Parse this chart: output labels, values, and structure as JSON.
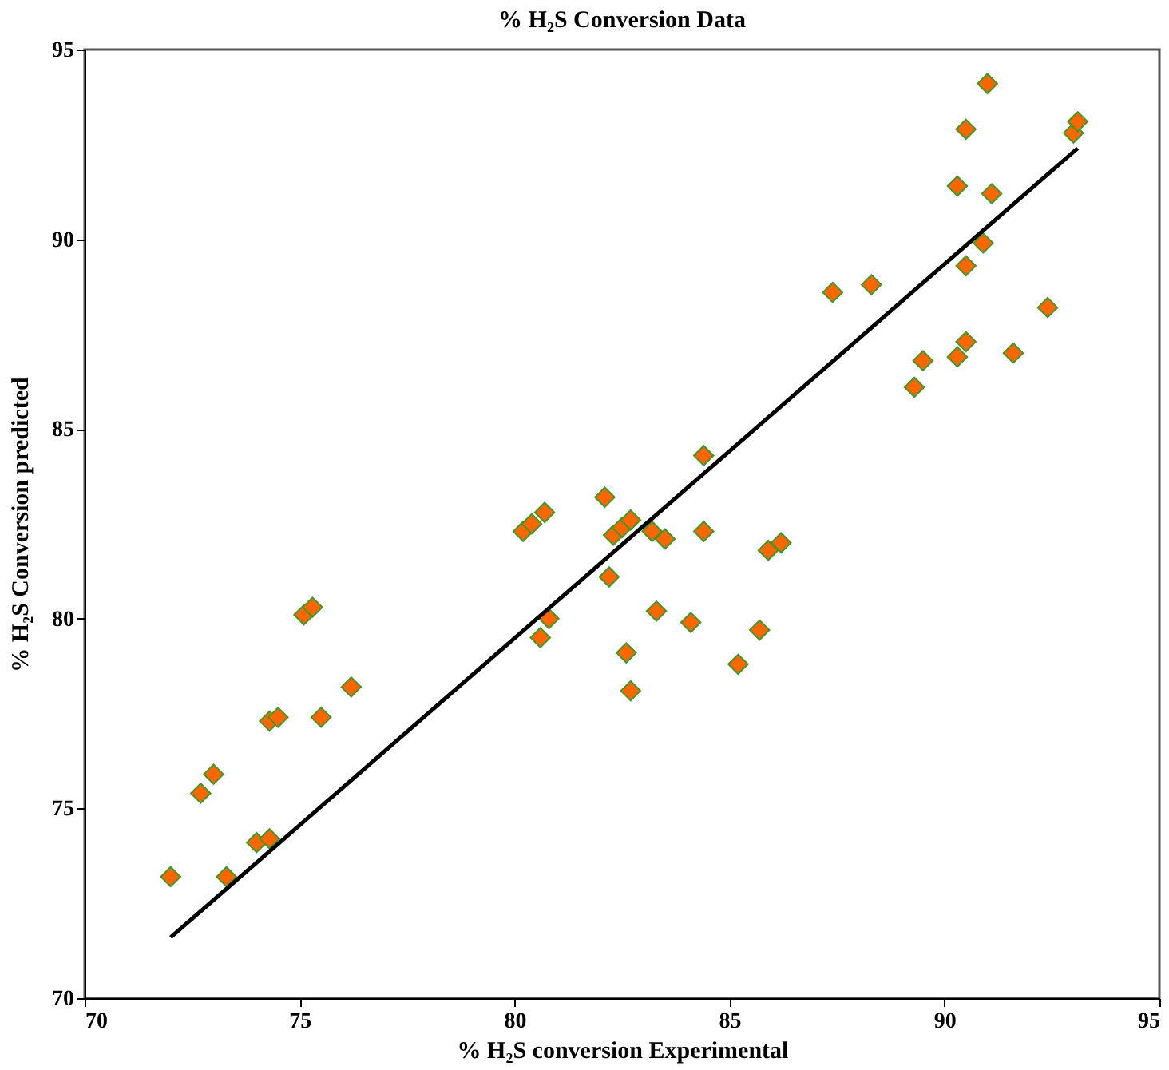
{
  "chart_data": {
    "type": "scatter",
    "title": "% H₂S Conversion Data",
    "xlabel": "% H₂S conversion Experimental",
    "ylabel": "% H₂S Conversion predicted",
    "xlim": [
      70,
      95
    ],
    "xticks": [
      70,
      75,
      80,
      85,
      90,
      95
    ],
    "ylim": [
      70,
      95
    ],
    "yticks": [
      70,
      75,
      80,
      85,
      90,
      95
    ],
    "grid": false,
    "marker": "diamond",
    "series": [
      {
        "color": "#ff6600",
        "x": [
          72.0,
          73.3,
          74.0,
          74.3,
          72.7,
          73.0,
          74.3,
          74.5,
          75.5,
          76.2,
          75.1,
          75.3,
          80.2,
          80.4,
          80.7,
          80.6,
          80.8,
          82.1,
          84.4,
          82.2,
          82.3,
          82.5,
          82.7,
          83.2,
          83.5,
          84.4,
          83.3,
          84.1,
          82.6,
          82.7,
          85.2,
          85.7,
          85.9,
          86.2,
          89.3,
          89.5,
          90.3,
          90.5,
          91.6,
          92.4,
          90.5,
          90.9,
          90.3,
          91.1,
          90.5,
          91.0,
          93.0,
          93.1,
          88.3,
          87.4
        ],
        "values": [
          73.2,
          73.2,
          74.1,
          74.2,
          75.4,
          75.9,
          77.3,
          77.4,
          77.4,
          78.2,
          80.1,
          80.3,
          82.3,
          82.5,
          82.8,
          79.5,
          80.0,
          83.2,
          84.3,
          81.1,
          82.2,
          82.4,
          82.6,
          82.3,
          82.1,
          82.3,
          80.2,
          79.9,
          79.1,
          78.1,
          78.8,
          79.7,
          81.8,
          82.0,
          86.1,
          86.8,
          86.9,
          87.3,
          87.0,
          88.2,
          89.3,
          89.9,
          91.4,
          91.2,
          92.9,
          94.1,
          92.8,
          93.1,
          88.8,
          88.6
        ]
      },
      {
        "type": "line",
        "color": "#000000",
        "line_style": "solid",
        "marker": "none",
        "x": [
          72.0,
          93.1
        ],
        "values": [
          71.6,
          92.4
        ]
      }
    ]
  }
}
